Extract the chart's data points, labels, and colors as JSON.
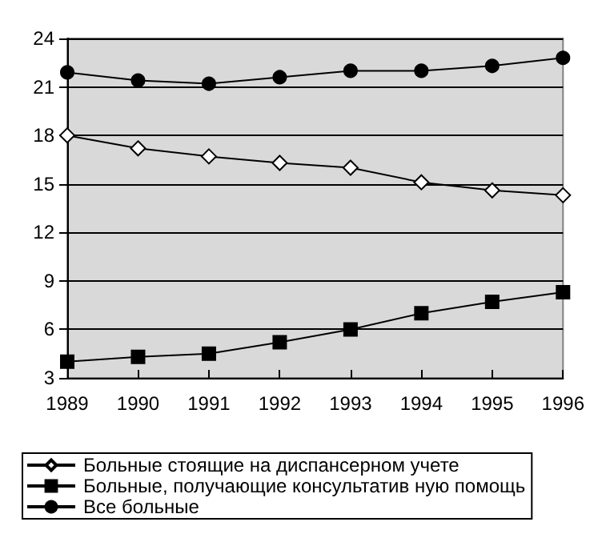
{
  "chart_data": {
    "type": "line",
    "categories": [
      "1989",
      "1990",
      "1991",
      "1992",
      "1993",
      "1994",
      "1995",
      "1996"
    ],
    "series": [
      {
        "name": "Больные стоящие на диспансерном учете",
        "color": "#000000",
        "marker": "diamond",
        "values": [
          18.0,
          17.2,
          16.7,
          16.3,
          16.0,
          15.1,
          14.6,
          14.3
        ]
      },
      {
        "name": "Больные, получающие консультатив ную помощь",
        "color": "#000000",
        "marker": "square",
        "values": [
          4.0,
          4.3,
          4.5,
          5.2,
          6.0,
          7.0,
          7.7,
          8.3
        ]
      },
      {
        "name": "Все больные",
        "color": "#000000",
        "marker": "circle",
        "values": [
          21.9,
          21.4,
          21.2,
          21.6,
          22.0,
          22.0,
          22.3,
          22.8
        ]
      }
    ],
    "ylim": [
      3,
      24
    ],
    "yticks": [
      3,
      6,
      9,
      12,
      15,
      18,
      21,
      24
    ],
    "grid": "y",
    "legend": "bottom"
  }
}
